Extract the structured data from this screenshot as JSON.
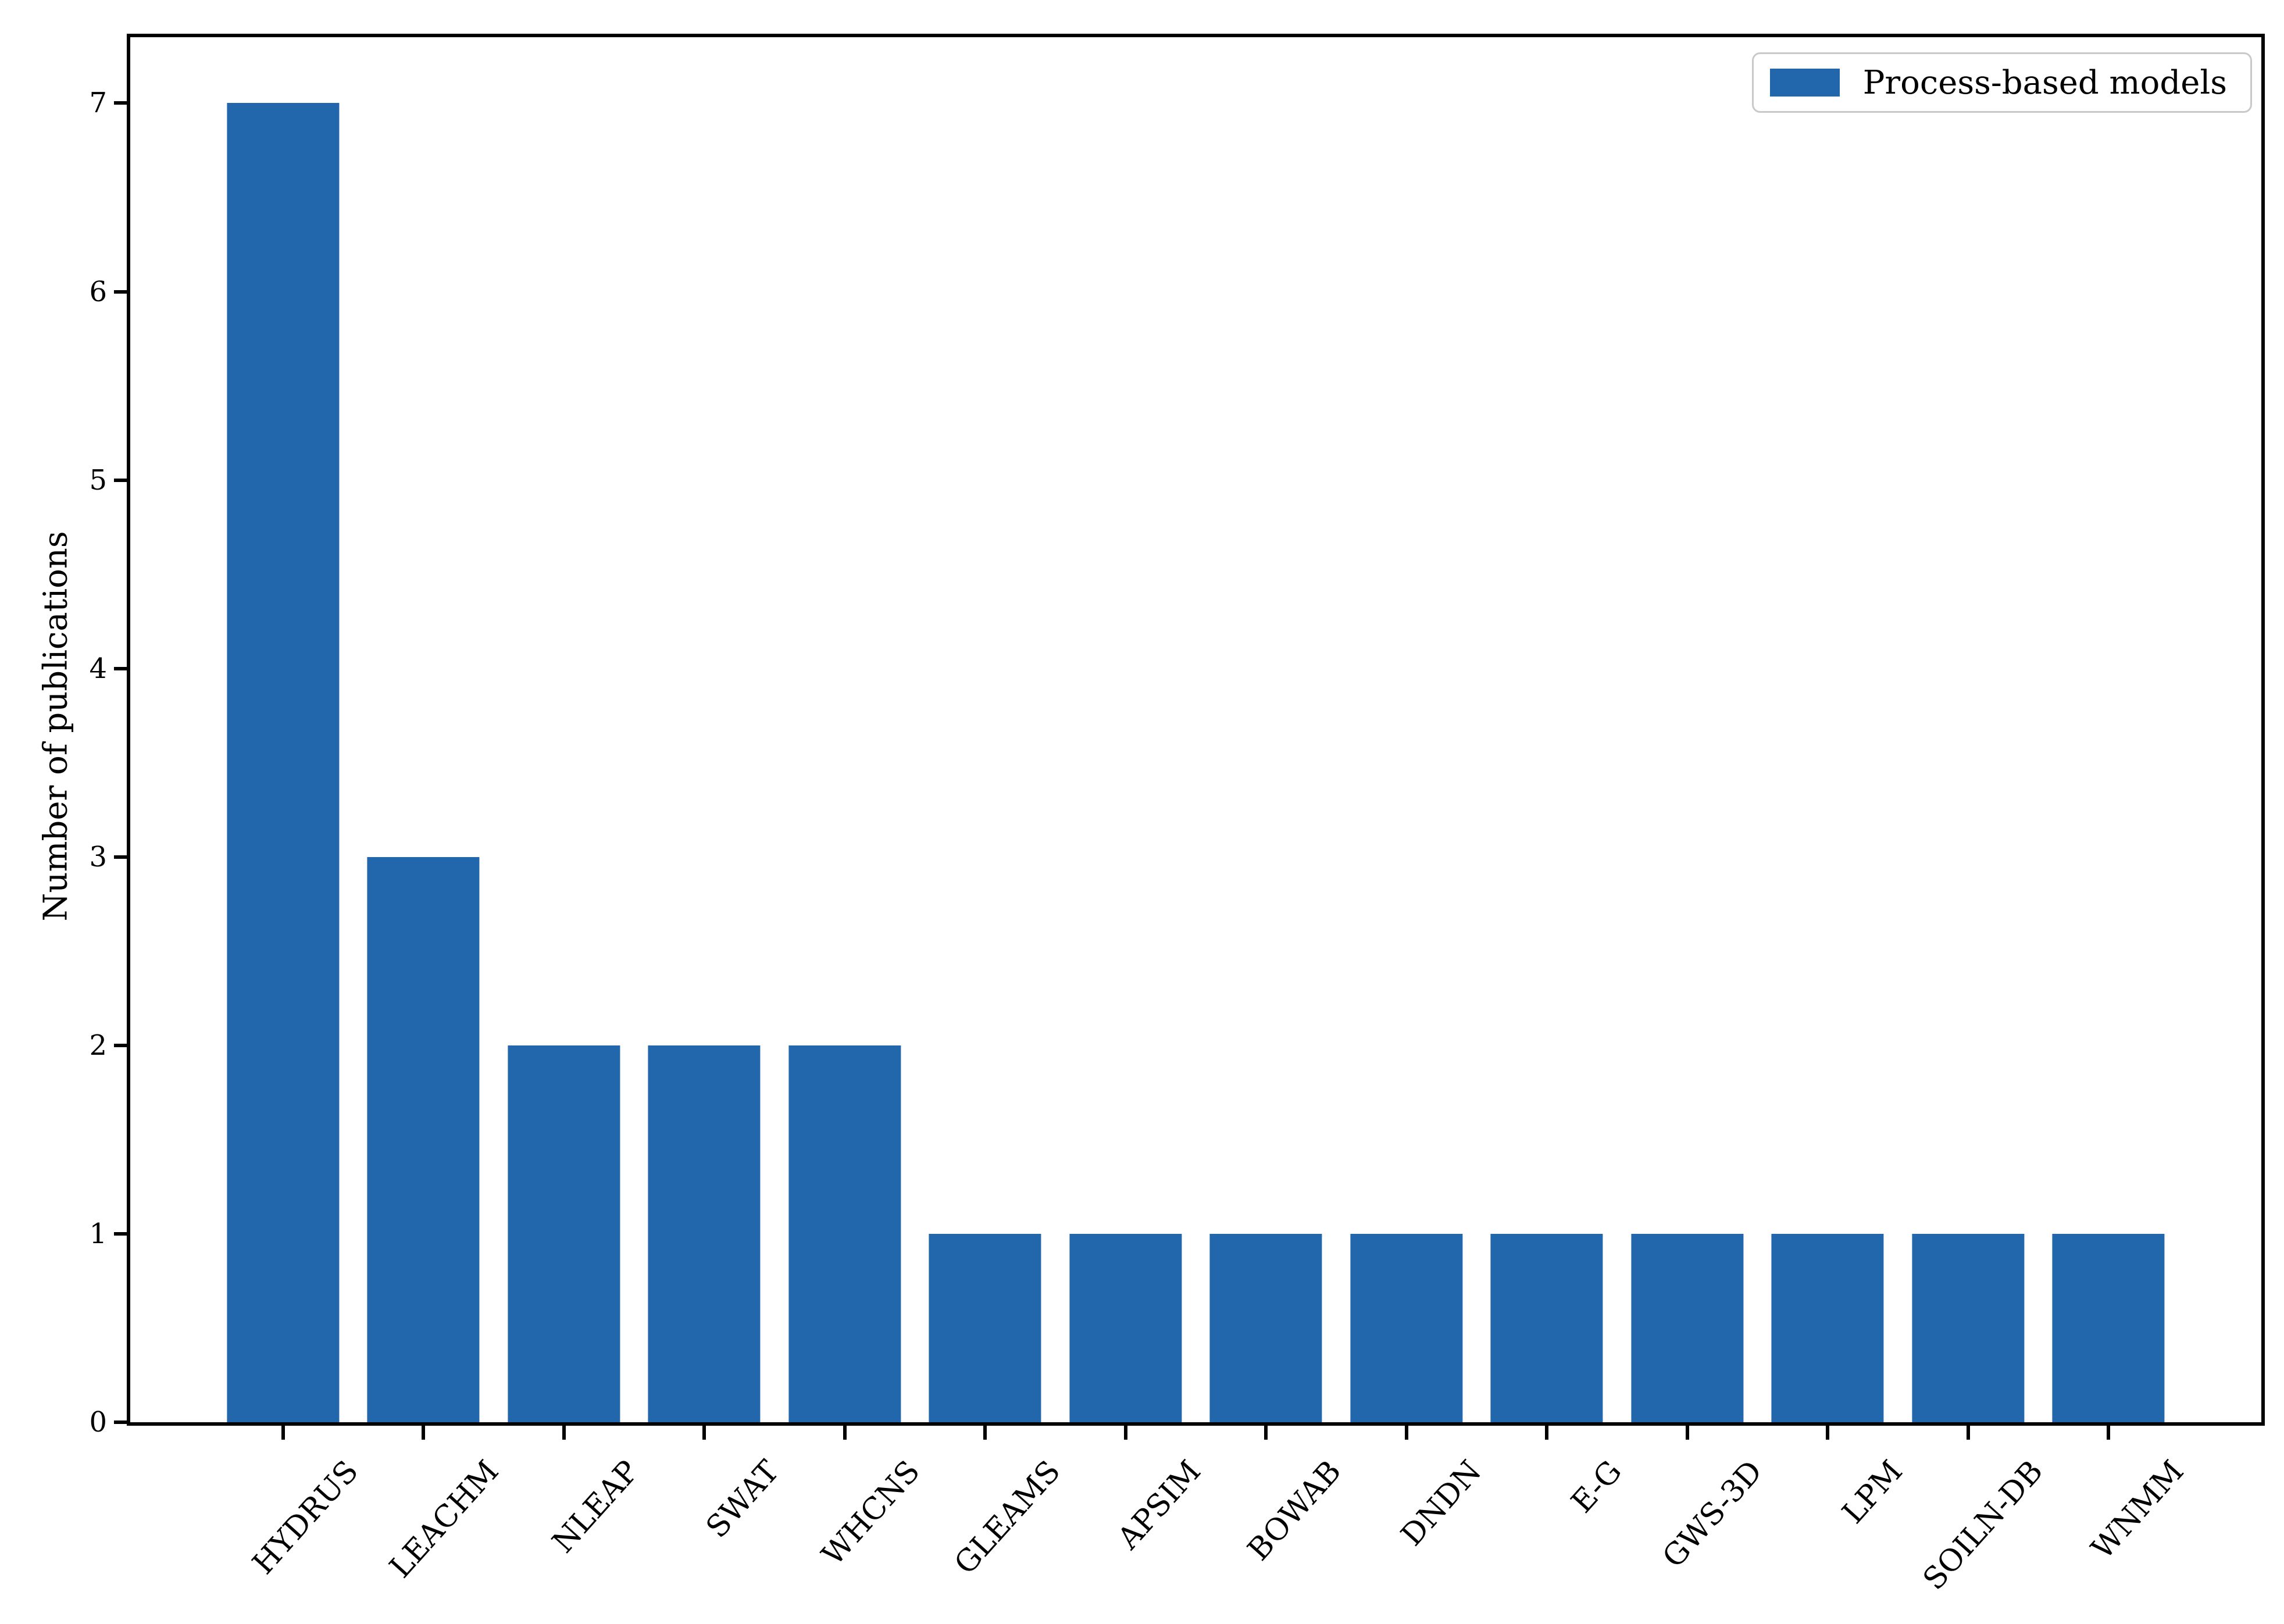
{
  "chart_data": {
    "type": "bar",
    "categories": [
      "HYDRUS",
      "LEACHM",
      "NLEAP",
      "SWAT",
      "WHCNS",
      "GLEAMS",
      "APSIM",
      "BOWAB",
      "DNDN",
      "E-G",
      "GWS-3D",
      "LPM",
      "SOILN-DB",
      "WNMM"
    ],
    "values": [
      7,
      3,
      2,
      2,
      2,
      1,
      1,
      1,
      1,
      1,
      1,
      1,
      1,
      1
    ],
    "series_name": "Process-based models",
    "title": "",
    "xlabel": "",
    "ylabel": "Number of publications",
    "yticks": [
      0,
      1,
      2,
      3,
      4,
      5,
      6,
      7
    ],
    "ylim": [
      0,
      7.35
    ],
    "grid": false,
    "legend_position": "upper right",
    "bar_color": "#2266ab",
    "axis_color": "#000000",
    "legend_border_color": "#c9c9c9",
    "x_tick_label_rotation_deg": 48
  }
}
